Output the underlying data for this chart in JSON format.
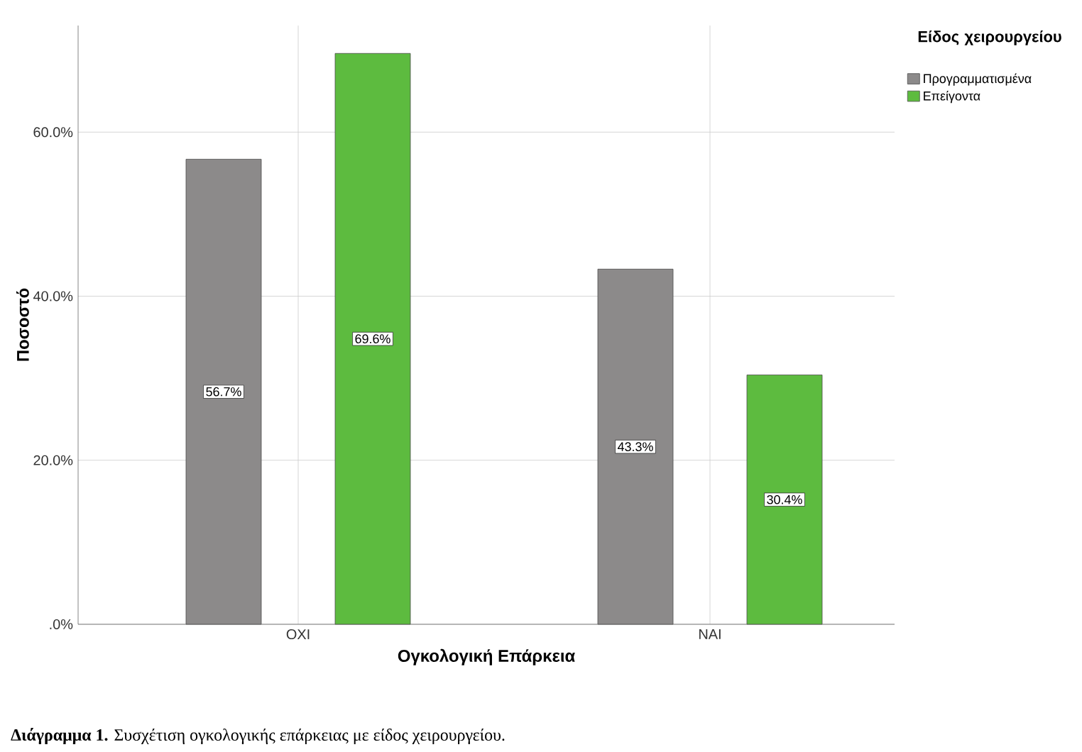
{
  "chart_data": {
    "type": "bar",
    "ylabel": "Ποσοστό",
    "xlabel": "Ογκολογική Επάρκεια",
    "legend_title": "Είδος χειρουργείου",
    "categories": [
      "ΟΧΙ",
      "ΝΑΙ"
    ],
    "series": [
      {
        "name": "Προγραμματισμένα",
        "color": "#8c8a8a",
        "values": [
          56.7,
          43.3
        ],
        "value_labels": [
          "56.7%",
          "43.3%"
        ]
      },
      {
        "name": "Επείγοντα",
        "color": "#5dbb3f",
        "values": [
          69.6,
          30.4
        ],
        "value_labels": [
          "69.6%",
          "30.4%"
        ]
      }
    ],
    "ylim": [
      0,
      73
    ],
    "yticks": [
      {
        "value": 0,
        "label": ".0%"
      },
      {
        "value": 20,
        "label": "20.0%"
      },
      {
        "value": 40,
        "label": "40.0%"
      },
      {
        "value": 60,
        "label": "60.0%"
      }
    ],
    "grid": true,
    "legend": "top right",
    "annotations": [
      "**Διάγραμμα 1.** Συσχέτιση ογκολογικής επάρκειας με είδος χειρουργείου."
    ]
  }
}
